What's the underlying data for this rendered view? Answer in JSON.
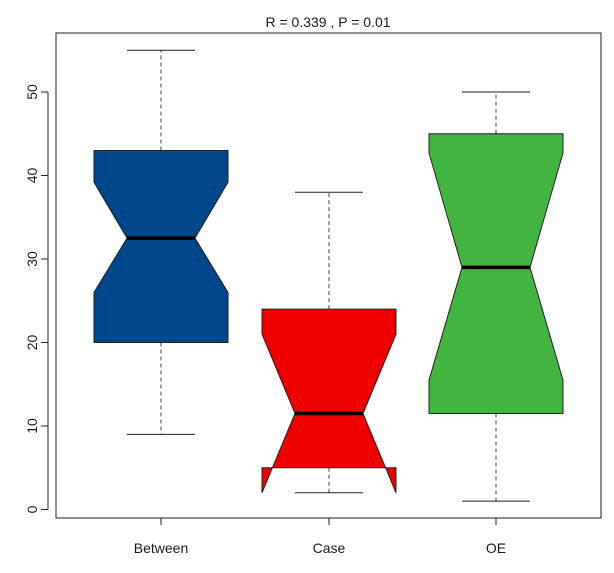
{
  "chart_data": {
    "type": "boxplot",
    "title": "R =  0.339 ,  P =  0.01",
    "xlabel": "",
    "ylabel": "",
    "ylim": [
      0,
      55
    ],
    "y_ticks": [
      0,
      10,
      20,
      30,
      40,
      50
    ],
    "y_tick_labels": [
      "0",
      "10",
      "20",
      "30",
      "40",
      "50"
    ],
    "grid": false,
    "notched": true,
    "categories": [
      "Between",
      "Case",
      "OE"
    ],
    "boxes": [
      {
        "category": "Between",
        "whisker_low": 9,
        "q1": 20,
        "median": 32.5,
        "q3": 43,
        "whisker_high": 55,
        "notch_low": 26,
        "notch_high": 39.2,
        "color": "#00468b"
      },
      {
        "category": "Case",
        "whisker_low": 2,
        "q1": 5,
        "median": 11.5,
        "q3": 24,
        "whisker_high": 38,
        "notch_low": 2,
        "notch_high": 21,
        "color": "#ee0000"
      },
      {
        "category": "OE",
        "whisker_low": 1,
        "q1": 11.5,
        "median": 29,
        "q3": 45,
        "whisker_high": 50,
        "notch_low": 15.5,
        "notch_high": 42.7,
        "color": "#42b540"
      }
    ]
  }
}
